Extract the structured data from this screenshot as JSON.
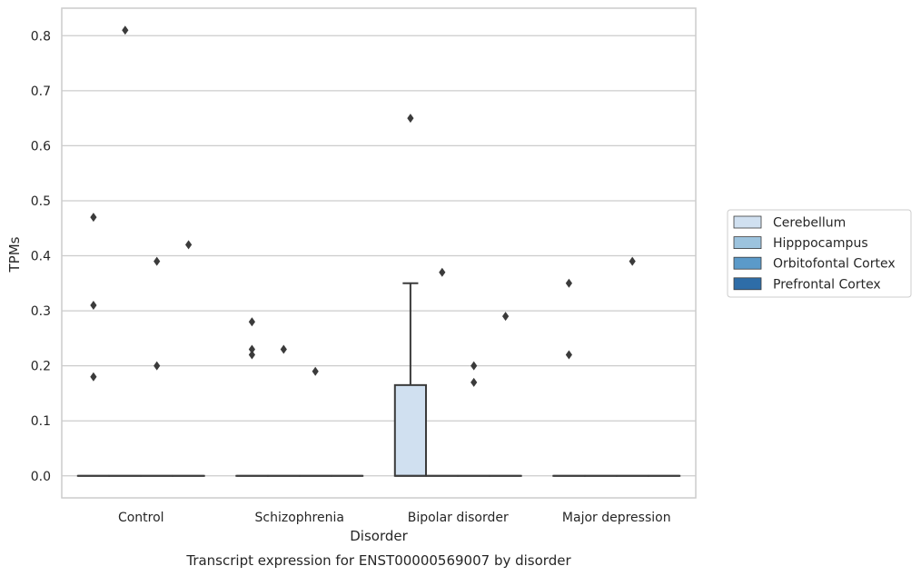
{
  "chart_data": {
    "type": "boxplot",
    "caption": "Transcript expression for ENST00000569007 by disorder",
    "xlabel": "Disorder",
    "ylabel": "TPMs",
    "ylim": [
      -0.04,
      0.85
    ],
    "yticks": [
      0.0,
      0.1,
      0.2,
      0.3,
      0.4,
      0.5,
      0.6,
      0.7,
      0.8
    ],
    "categories": [
      "Control",
      "Schizophrenia",
      "Bipolar disorder",
      "Major depression"
    ],
    "grid": true,
    "legend_position": "right",
    "series": [
      {
        "name": "Cerebellum",
        "color": "#d0e0f0",
        "boxes": [
          {
            "q1": 0,
            "median": 0,
            "q3": 0,
            "whisker_low": 0,
            "whisker_high": 0,
            "outliers": [
              0.18,
              0.31,
              0.47
            ]
          },
          {
            "q1": 0,
            "median": 0,
            "q3": 0,
            "whisker_low": 0,
            "whisker_high": 0,
            "outliers": [
              0.22,
              0.23,
              0.28
            ]
          },
          {
            "q1": 0,
            "median": 0,
            "q3": 0.165,
            "whisker_low": 0,
            "whisker_high": 0.35,
            "outliers": [
              0.65
            ]
          },
          {
            "q1": 0,
            "median": 0,
            "q3": 0,
            "whisker_low": 0,
            "whisker_high": 0,
            "outliers": [
              0.22,
              0.35
            ]
          }
        ]
      },
      {
        "name": "Hipppocampus",
        "color": "#9cc3de",
        "boxes": [
          {
            "q1": 0,
            "median": 0,
            "q3": 0,
            "whisker_low": 0,
            "whisker_high": 0,
            "outliers": [
              0.81
            ]
          },
          {
            "q1": 0,
            "median": 0,
            "q3": 0,
            "whisker_low": 0,
            "whisker_high": 0,
            "outliers": [
              0.23
            ]
          },
          {
            "q1": 0,
            "median": 0,
            "q3": 0,
            "whisker_low": 0,
            "whisker_high": 0,
            "outliers": [
              0.37
            ]
          },
          {
            "q1": 0,
            "median": 0,
            "q3": 0,
            "whisker_low": 0,
            "whisker_high": 0,
            "outliers": []
          }
        ]
      },
      {
        "name": "Orbitofontal Cortex",
        "color": "#5b9ac9",
        "boxes": [
          {
            "q1": 0,
            "median": 0,
            "q3": 0,
            "whisker_low": 0,
            "whisker_high": 0,
            "outliers": [
              0.2,
              0.39
            ]
          },
          {
            "q1": 0,
            "median": 0,
            "q3": 0,
            "whisker_low": 0,
            "whisker_high": 0,
            "outliers": [
              0.19
            ]
          },
          {
            "q1": 0,
            "median": 0,
            "q3": 0,
            "whisker_low": 0,
            "whisker_high": 0,
            "outliers": [
              0.17,
              0.2
            ]
          },
          {
            "q1": 0,
            "median": 0,
            "q3": 0,
            "whisker_low": 0,
            "whisker_high": 0,
            "outliers": [
              0.39
            ]
          }
        ]
      },
      {
        "name": "Prefrontal Cortex",
        "color": "#2e6da8",
        "boxes": [
          {
            "q1": 0,
            "median": 0,
            "q3": 0,
            "whisker_low": 0,
            "whisker_high": 0,
            "outliers": [
              0.42
            ]
          },
          {
            "q1": 0,
            "median": 0,
            "q3": 0,
            "whisker_low": 0,
            "whisker_high": 0,
            "outliers": []
          },
          {
            "q1": 0,
            "median": 0,
            "q3": 0,
            "whisker_low": 0,
            "whisker_high": 0,
            "outliers": [
              0.29
            ]
          },
          {
            "q1": 0,
            "median": 0,
            "q3": 0,
            "whisker_low": 0,
            "whisker_high": 0,
            "outliers": []
          }
        ]
      }
    ]
  }
}
